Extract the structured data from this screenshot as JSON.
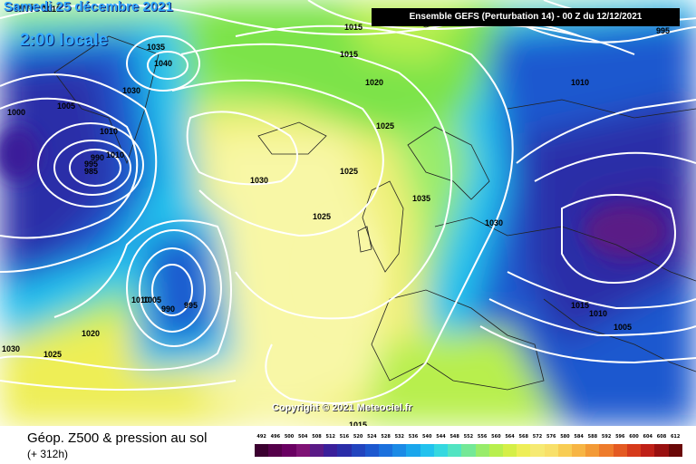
{
  "header": {
    "date": "Samedi 25 décembre 2021",
    "time": "2:00 locale",
    "run_info": "Ensemble GEFS  (Perturbation 14)  -  00 Z du 12/12/2021"
  },
  "copyright": "Copyright © 2021 Meteociel.fr",
  "footer": {
    "title": "Géop. Z500 & pression au sol",
    "forecast_hour": "(+ 312h)"
  },
  "colors": {
    "ocean_deep": "#1e2a8c",
    "sea_blue": "#1d6fd6",
    "cyan": "#29d3e6",
    "green": "#7be34a",
    "yellow_green": "#c8ee4a",
    "yellow": "#f0f077",
    "light_yellow": "#f8f7a6",
    "isobar": "#ffffff"
  },
  "scale": {
    "labels": [
      "492",
      "496",
      "500",
      "504",
      "508",
      "512",
      "516",
      "520",
      "524",
      "528",
      "532",
      "536",
      "540",
      "544",
      "548",
      "552",
      "556",
      "560",
      "564",
      "568",
      "572",
      "576",
      "580",
      "584",
      "588",
      "592",
      "596",
      "600",
      "604",
      "608",
      "612"
    ],
    "colors": [
      "#3b0030",
      "#55004a",
      "#6a0062",
      "#7f1275",
      "#5a1a86",
      "#3a1f9a",
      "#2a2da8",
      "#2244be",
      "#1d58cf",
      "#1b70dd",
      "#1b8ae6",
      "#1aa6ec",
      "#22c2ee",
      "#35d8e0",
      "#52e4c2",
      "#74e897",
      "#98ec6a",
      "#b8ef4e",
      "#d5ef47",
      "#eeee57",
      "#f6ea73",
      "#f8e06a",
      "#f8cd54",
      "#f7b544",
      "#f39a36",
      "#ee7b2b",
      "#e45a22",
      "#d63a1b",
      "#bf2017",
      "#991010",
      "#6a0808"
    ]
  },
  "pressure_labels": [
    {
      "text": "1005"
    },
    {
      "text": "1010"
    },
    {
      "text": "1035"
    },
    {
      "text": "1040"
    },
    {
      "text": "1030"
    },
    {
      "text": "1000"
    },
    {
      "text": "1005"
    },
    {
      "text": "1010"
    },
    {
      "text": "990"
    },
    {
      "text": "995"
    },
    {
      "text": "985"
    },
    {
      "text": "1010"
    },
    {
      "text": "1015"
    },
    {
      "text": "1015"
    },
    {
      "text": "1020"
    },
    {
      "text": "1025"
    },
    {
      "text": "1030"
    },
    {
      "text": "1025"
    },
    {
      "text": "1035"
    },
    {
      "text": "1025"
    },
    {
      "text": "1030"
    },
    {
      "text": "1010"
    },
    {
      "text": "1005"
    },
    {
      "text": "990"
    },
    {
      "text": "995"
    },
    {
      "text": "1020"
    },
    {
      "text": "1030"
    },
    {
      "text": "1025"
    },
    {
      "text": "1015"
    },
    {
      "text": "1010"
    },
    {
      "text": "1005"
    },
    {
      "text": "1010"
    },
    {
      "text": "995"
    },
    {
      "text": "1015"
    }
  ]
}
